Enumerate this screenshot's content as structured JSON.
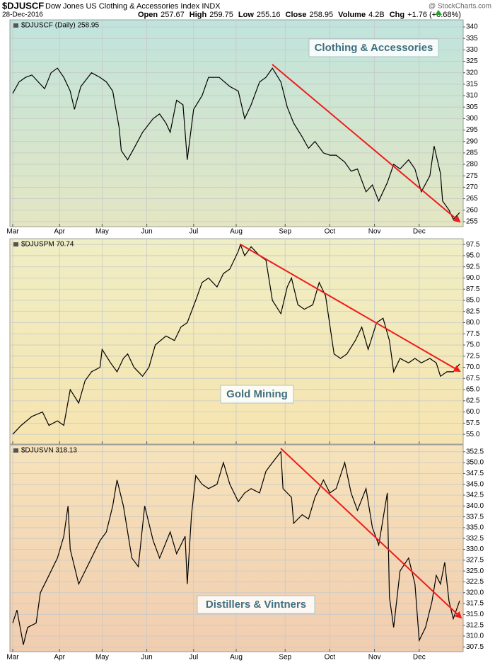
{
  "header": {
    "symbol": "$DJUSCF",
    "name": "Dow Jones US Clothing & Accessories Index INDX",
    "site": "@ StockCharts.com",
    "date": "28-Dec-2016",
    "quote": [
      {
        "label": "Open",
        "value": "257.67"
      },
      {
        "label": "High",
        "value": "259.75"
      },
      {
        "label": "Low",
        "value": "255.16"
      },
      {
        "label": "Close",
        "value": "258.95"
      },
      {
        "label": "Volume",
        "value": "4.2B"
      },
      {
        "label": "Chg",
        "value": "+1.76 (+0.68%)"
      }
    ]
  },
  "chart_data": [
    {
      "type": "line",
      "legend": "$DJUSCF (Daily) 258.95",
      "annotation": "Clothing & Accessories",
      "color": "#000000",
      "grid": true,
      "x": [
        0,
        3,
        6,
        9,
        12,
        15,
        18,
        21,
        24,
        27,
        29,
        32,
        37,
        41,
        44,
        47,
        50,
        51,
        54,
        57,
        61,
        66,
        69,
        72,
        74,
        77,
        80,
        82,
        85,
        89,
        92,
        97,
        102,
        106,
        109,
        112,
        116,
        119,
        122,
        126,
        129,
        132,
        136,
        139,
        142,
        146,
        149,
        152,
        156,
        159,
        162,
        166,
        169,
        172,
        176,
        179,
        182,
        186,
        189,
        192,
        196,
        198,
        201,
        202,
        205,
        207,
        210
      ],
      "values": [
        311,
        316,
        318,
        319,
        316,
        313,
        320,
        322,
        318,
        312,
        304,
        314,
        320,
        318,
        316,
        312,
        296,
        286,
        282,
        287,
        294,
        300,
        302,
        298,
        294,
        308,
        306,
        282,
        304,
        310,
        318,
        318,
        314,
        312,
        300,
        306,
        316,
        318,
        322,
        316,
        305,
        298,
        292,
        287,
        290,
        285,
        284,
        284,
        281,
        277,
        278,
        268,
        271,
        264,
        272,
        280,
        278,
        282,
        278,
        268,
        275,
        288,
        276,
        264,
        260,
        256,
        258.95
      ],
      "xlim": [
        0,
        210
      ],
      "xticks": [
        {
          "value": 0,
          "label": "Mar"
        },
        {
          "value": 22,
          "label": "Apr"
        },
        {
          "value": 42,
          "label": "May"
        },
        {
          "value": 63,
          "label": "Jun"
        },
        {
          "value": 85,
          "label": "Jul"
        },
        {
          "value": 105,
          "label": "Aug"
        },
        {
          "value": 128,
          "label": "Sep"
        },
        {
          "value": 149,
          "label": "Oct"
        },
        {
          "value": 170,
          "label": "Nov"
        },
        {
          "value": 191,
          "label": "Dec"
        }
      ],
      "ylim": [
        252.8,
        343.1
      ],
      "yticks": [
        255,
        260,
        265,
        270,
        275,
        280,
        285,
        290,
        295,
        300,
        305,
        310,
        315,
        320,
        325,
        330,
        335,
        340
      ]
    },
    {
      "type": "line",
      "legend": "$DJUSPM 70.74",
      "annotation": "Gold Mining",
      "color": "#000000",
      "grid": true,
      "x": [
        0,
        4,
        9,
        14,
        17,
        21,
        24,
        27,
        31,
        34,
        37,
        41,
        42,
        46,
        49,
        52,
        54,
        57,
        61,
        64,
        67,
        72,
        76,
        79,
        82,
        86,
        89,
        92,
        96,
        99,
        102,
        106,
        107,
        109,
        112,
        116,
        119,
        122,
        126,
        129,
        131,
        134,
        137,
        141,
        144,
        147,
        151,
        154,
        157,
        161,
        164,
        167,
        171,
        174,
        177,
        179,
        182,
        186,
        189,
        192,
        196,
        199,
        201,
        204,
        207,
        210
      ],
      "values": [
        55,
        57,
        59,
        60,
        57,
        58,
        57,
        65,
        62,
        67,
        69,
        70,
        74,
        71,
        69,
        72,
        73,
        70,
        68,
        70,
        75,
        77,
        76,
        79,
        80,
        85,
        89,
        90,
        88,
        91,
        92,
        96,
        97.5,
        95,
        97,
        95,
        94,
        85,
        82,
        88,
        90,
        84,
        83,
        84,
        89,
        86,
        73,
        72,
        73,
        76,
        79,
        74,
        80,
        81,
        76,
        69,
        72,
        71,
        72,
        71,
        72,
        71,
        68,
        69,
        69,
        70.74
      ],
      "xlim": [
        0,
        210
      ],
      "xticks": [
        0,
        22,
        42,
        63,
        85,
        105,
        128,
        149,
        170,
        191
      ],
      "ylim": [
        52.8,
        98.8
      ],
      "yticks": [
        {
          "value": 55,
          "label": "55.0"
        },
        57.5,
        {
          "value": 60,
          "label": "60.0"
        },
        62.5,
        {
          "value": 65,
          "label": "65.0"
        },
        67.5,
        {
          "value": 70,
          "label": "70.0"
        },
        72.5,
        {
          "value": 75,
          "label": "75.0"
        },
        77.5,
        {
          "value": 80,
          "label": "80.0"
        },
        82.5,
        {
          "value": 85,
          "label": "85.0"
        },
        87.5,
        {
          "value": 90,
          "label": "90.0"
        },
        92.5,
        {
          "value": 95,
          "label": "95.0"
        },
        97.5
      ]
    },
    {
      "type": "line",
      "legend": "$DJUSVN 318.13",
      "annotation": "Distillers & Vintners",
      "color": "#000000",
      "grid": true,
      "x": [
        0,
        2,
        5,
        7,
        11,
        13,
        17,
        21,
        24,
        26,
        27,
        31,
        34,
        37,
        41,
        44,
        47,
        49,
        52,
        56,
        59,
        62,
        66,
        69,
        74,
        77,
        81,
        82,
        84,
        86,
        89,
        92,
        96,
        99,
        102,
        106,
        109,
        112,
        116,
        119,
        122,
        126,
        127,
        131,
        132,
        136,
        139,
        142,
        146,
        149,
        152,
        156,
        159,
        162,
        166,
        169,
        172,
        176,
        177,
        179,
        182,
        186,
        189,
        191,
        194,
        197,
        199,
        201,
        203,
        205,
        207,
        210
      ],
      "values": [
        313,
        316,
        308,
        312,
        313,
        320,
        324,
        328,
        333,
        340,
        330,
        322,
        325,
        328,
        332,
        334,
        340,
        346,
        340,
        328,
        326,
        340,
        332,
        328,
        334,
        329,
        333,
        322,
        338,
        347,
        345,
        344,
        345,
        350,
        345,
        341,
        343,
        344,
        343,
        348,
        350,
        352.5,
        344,
        342,
        336,
        338,
        337,
        342,
        346,
        343,
        344,
        350,
        343,
        339,
        344,
        335,
        331,
        343,
        319,
        312,
        325,
        328,
        322,
        309,
        312,
        318,
        324,
        322,
        327,
        318,
        314,
        318.13
      ],
      "xlim": [
        0,
        210
      ],
      "xticks": [
        {
          "value": 0,
          "label": "Mar"
        },
        {
          "value": 22,
          "label": "Apr"
        },
        {
          "value": 42,
          "label": "May"
        },
        {
          "value": 63,
          "label": "Jun"
        },
        {
          "value": 85,
          "label": "Jul"
        },
        {
          "value": 105,
          "label": "Aug"
        },
        {
          "value": 128,
          "label": "Sep"
        },
        {
          "value": 149,
          "label": "Oct"
        },
        {
          "value": 170,
          "label": "Nov"
        },
        {
          "value": 191,
          "label": "Dec"
        }
      ],
      "ylim": [
        306.4,
        354.1
      ],
      "yticks": [
        307.5,
        {
          "value": 310,
          "label": "310.0"
        },
        312.5,
        {
          "value": 315,
          "label": "315.0"
        },
        317.5,
        {
          "value": 320,
          "label": "320.0"
        },
        322.5,
        {
          "value": 325,
          "label": "325.0"
        },
        327.5,
        {
          "value": 330,
          "label": "330.0"
        },
        332.5,
        {
          "value": 335,
          "label": "335.0"
        },
        337.5,
        {
          "value": 340,
          "label": "340.0"
        },
        342.5,
        {
          "value": 345,
          "label": "345.0"
        },
        347.5,
        {
          "value": 350,
          "label": "350.0"
        },
        352.5
      ]
    }
  ]
}
